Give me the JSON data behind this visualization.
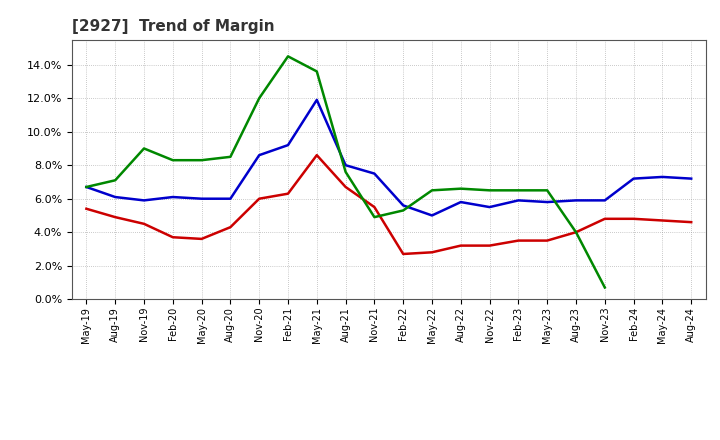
{
  "title": "[2927]  Trend of Margin",
  "x_labels": [
    "May-19",
    "Aug-19",
    "Nov-19",
    "Feb-20",
    "May-20",
    "Aug-20",
    "Nov-20",
    "Feb-21",
    "May-21",
    "Aug-21",
    "Nov-21",
    "Feb-22",
    "May-22",
    "Aug-22",
    "Nov-22",
    "Feb-23",
    "May-23",
    "Aug-23",
    "Nov-23",
    "Feb-24",
    "May-24",
    "Aug-24"
  ],
  "ordinary_income": [
    6.7,
    6.1,
    5.9,
    6.1,
    6.0,
    6.0,
    8.6,
    9.2,
    11.9,
    8.0,
    7.5,
    5.6,
    5.0,
    5.8,
    5.5,
    5.9,
    5.8,
    5.9,
    5.9,
    7.2,
    7.3,
    7.2
  ],
  "net_income": [
    5.4,
    4.9,
    4.5,
    3.7,
    3.6,
    4.3,
    6.0,
    6.3,
    8.6,
    6.7,
    5.5,
    2.7,
    2.8,
    3.2,
    3.2,
    3.5,
    3.5,
    4.0,
    4.8,
    4.8,
    4.7,
    4.6
  ],
  "operating_cashflow": [
    6.7,
    7.1,
    9.0,
    8.3,
    8.3,
    8.5,
    12.0,
    14.5,
    13.6,
    7.6,
    4.9,
    5.3,
    6.5,
    6.6,
    6.5,
    6.5,
    6.5,
    4.0,
    0.7,
    null,
    null,
    null
  ],
  "ordinary_income_color": "#0000cc",
  "net_income_color": "#cc0000",
  "operating_cashflow_color": "#008800",
  "ylim": [
    0,
    15.5
  ],
  "yticks": [
    0.0,
    2.0,
    4.0,
    6.0,
    8.0,
    10.0,
    12.0,
    14.0
  ],
  "background_color": "#ffffff",
  "grid_color": "#999999"
}
